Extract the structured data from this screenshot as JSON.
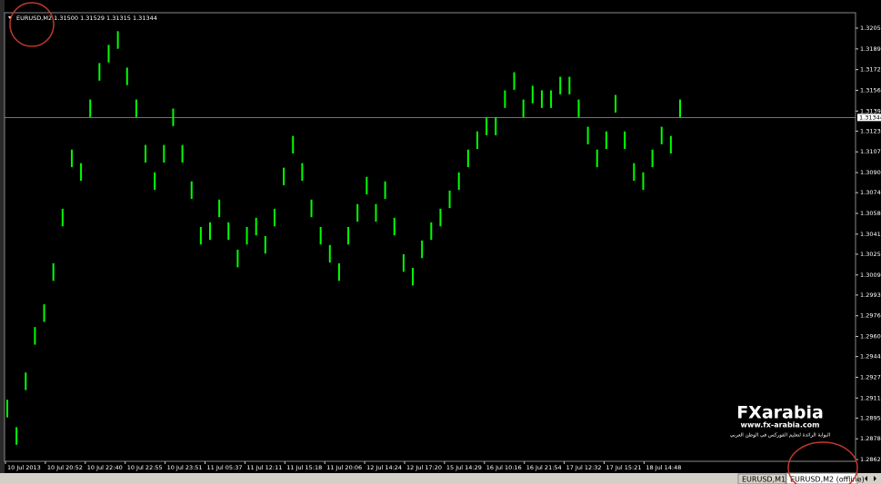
{
  "chart_data": {
    "type": "hlbar",
    "header": "EURUSD,M2  1.31500 1.31529 1.31315 1.31344",
    "color": "#00ff00",
    "ylim": [
      1.28606,
      1.32178
    ],
    "yticks": [
      1.32055,
      1.3189,
      1.31725,
      {
        "value": 1.3156,
        "label": "1.31560"
      },
      1.31395,
      1.31235,
      1.3107,
      1.30905,
      1.30745,
      {
        "value": 1.3058,
        "label": "1.30580"
      },
      1.30415,
      1.30255,
      {
        "value": 1.3009,
        "label": "1.30090"
      },
      {
        "value": 1.2993,
        "label": "1.29930"
      },
      1.29765,
      {
        "value": 1.296,
        "label": "1.29600"
      },
      {
        "value": 1.2944,
        "label": "1.29440"
      },
      1.29275,
      {
        "value": 1.2911,
        "label": "1.29110"
      },
      {
        "value": 1.2895,
        "label": "1.28950"
      },
      1.28785,
      {
        "value": 1.2862,
        "label": "1.28620"
      }
    ],
    "price_line": 1.31344,
    "time_labels": [
      "10 Jul 2013",
      "10 Jul 20:52",
      "10 Jul 22:40",
      "10 Jul 22:55",
      "10 Jul 23:51",
      "11 Jul 05:37",
      "11 Jul 12:11",
      "11 Jul 15:18",
      "11 Jul 20:06",
      "12 Jul 14:24",
      "12 Jul 17:20",
      "15 Jul 14:29",
      "16 Jul 10:16",
      "16 Jul 21:54",
      "17 Jul 12:32",
      "17 Jul 15:21",
      "18 Jul 14:48"
    ],
    "high": [
      1.29096,
      1.28878,
      1.29313,
      1.29675,
      1.29856,
      1.30183,
      1.30617,
      1.31088,
      1.3098,
      1.31487,
      1.31777,
      1.31922,
      1.32031,
      1.31741,
      1.31487,
      1.31125,
      1.30907,
      1.31125,
      1.31415,
      1.31125,
      1.30835,
      1.30472,
      1.30509,
      1.3069,
      1.30509,
      1.30291,
      1.30472,
      1.30545,
      1.304,
      1.30617,
      1.30944,
      1.31197,
      1.3098,
      1.3069,
      1.30472,
      1.30328,
      1.30183,
      1.30472,
      1.30654,
      1.30871,
      1.30654,
      1.30835,
      1.30545,
      1.30255,
      1.30146,
      1.30364,
      1.30509,
      1.30617,
      1.30762,
      1.30907,
      1.31088,
      1.31233,
      1.31342,
      1.31342,
      1.3156,
      1.31704,
      1.31487,
      1.31596,
      1.3156,
      1.3156,
      1.31668,
      1.31668,
      1.31487,
      1.3127,
      1.31088,
      1.31233,
      1.31523,
      1.31233,
      1.3098,
      1.30907,
      1.31088,
      1.3127,
      1.31197,
      1.31487
    ],
    "low": [
      1.28956,
      1.28738,
      1.29173,
      1.29535,
      1.29716,
      1.30043,
      1.30477,
      1.30948,
      1.3084,
      1.31347,
      1.31637,
      1.31782,
      1.31891,
      1.31601,
      1.31347,
      1.30985,
      1.30767,
      1.30985,
      1.31275,
      1.30985,
      1.30695,
      1.30332,
      1.30369,
      1.3055,
      1.30369,
      1.30151,
      1.30332,
      1.30405,
      1.3026,
      1.30477,
      1.30804,
      1.31057,
      1.3084,
      1.3055,
      1.30332,
      1.30188,
      1.30043,
      1.30332,
      1.30514,
      1.30731,
      1.30514,
      1.30695,
      1.30405,
      1.30115,
      1.30006,
      1.30224,
      1.30369,
      1.30477,
      1.30622,
      1.30767,
      1.30948,
      1.31093,
      1.31202,
      1.31202,
      1.3142,
      1.31564,
      1.31347,
      1.31456,
      1.3142,
      1.3142,
      1.31528,
      1.31528,
      1.31347,
      1.3113,
      1.30948,
      1.31093,
      1.31383,
      1.31093,
      1.3084,
      1.30767,
      1.30948,
      1.3113,
      1.31057,
      1.31347
    ]
  },
  "watermark": {
    "brand": "FXarabia",
    "url": "www.fx-arabia.com",
    "tagline": "البوابة الرائدة لتعليم الفوركس في الوطن العربي"
  },
  "tabs": [
    "EURUSD,M1",
    "EURUSD,M2 (offline)"
  ]
}
